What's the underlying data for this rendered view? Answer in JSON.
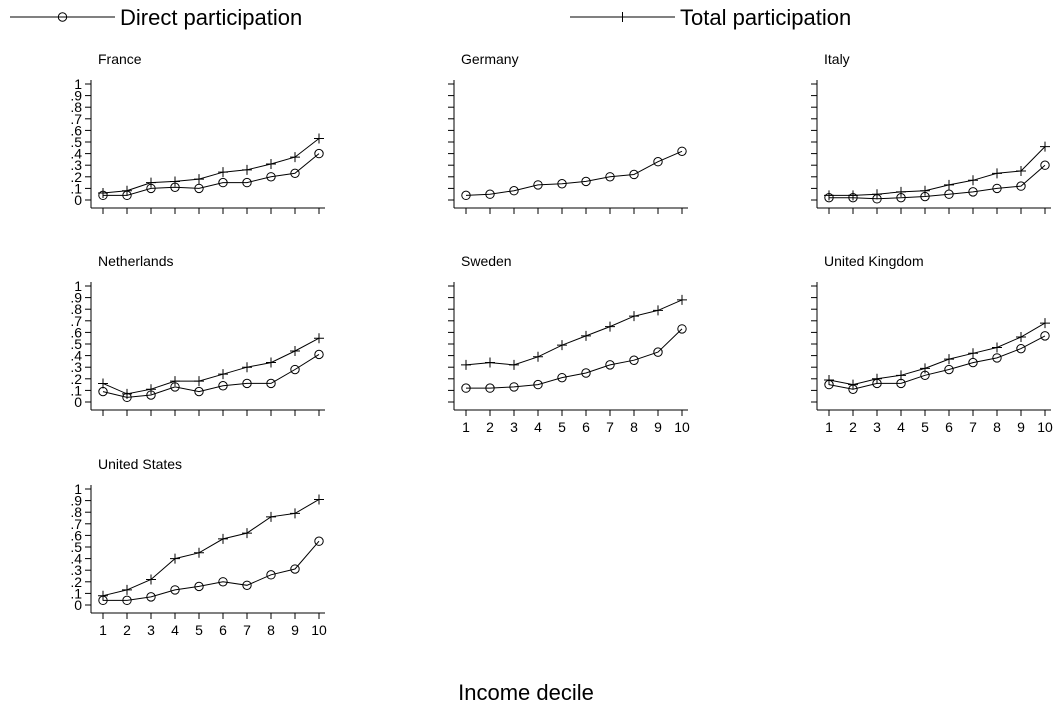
{
  "chart_data": {
    "type": "line",
    "xlabel": "Income decile",
    "ylabel": "",
    "x": [
      1,
      2,
      3,
      4,
      5,
      6,
      7,
      8,
      9,
      10
    ],
    "ylim": [
      0,
      1
    ],
    "yticks": [
      0,
      0.1,
      0.2,
      0.3,
      0.4,
      0.5,
      0.6,
      0.7,
      0.8,
      0.9,
      1
    ],
    "ytick_labels": [
      "0",
      ".1",
      ".2",
      ".3",
      ".4",
      ".5",
      ".6",
      ".7",
      ".8",
      ".9",
      "1"
    ],
    "xtick_labels": [
      "1",
      "2",
      "3",
      "4",
      "5",
      "6",
      "7",
      "8",
      "9",
      "10"
    ],
    "grid": false,
    "legend_position": "top",
    "legend": [
      {
        "key": "direct",
        "label": "Direct participation",
        "marker": "circle"
      },
      {
        "key": "total",
        "label": "Total participation",
        "marker": "plus"
      }
    ],
    "panels": [
      {
        "title": "France",
        "series": [
          {
            "key": "direct",
            "values": [
              0.04,
              0.04,
              0.1,
              0.11,
              0.1,
              0.15,
              0.15,
              0.2,
              0.23,
              0.4
            ]
          },
          {
            "key": "total",
            "values": [
              0.06,
              0.08,
              0.15,
              0.16,
              0.18,
              0.24,
              0.26,
              0.31,
              0.37,
              0.53
            ]
          }
        ]
      },
      {
        "title": "Germany",
        "series": [
          {
            "key": "direct",
            "values": [
              0.04,
              0.05,
              0.08,
              0.13,
              0.14,
              0.16,
              0.2,
              0.22,
              0.33,
              0.42
            ]
          }
        ]
      },
      {
        "title": "Italy",
        "series": [
          {
            "key": "direct",
            "values": [
              0.02,
              0.02,
              0.01,
              0.02,
              0.03,
              0.05,
              0.07,
              0.1,
              0.12,
              0.3
            ]
          },
          {
            "key": "total",
            "values": [
              0.04,
              0.04,
              0.05,
              0.07,
              0.08,
              0.13,
              0.17,
              0.23,
              0.25,
              0.46
            ]
          }
        ]
      },
      {
        "title": "Netherlands",
        "series": [
          {
            "key": "direct",
            "values": [
              0.09,
              0.04,
              0.06,
              0.13,
              0.09,
              0.14,
              0.16,
              0.16,
              0.28,
              0.41
            ]
          },
          {
            "key": "total",
            "values": [
              0.16,
              0.07,
              0.11,
              0.18,
              0.18,
              0.24,
              0.3,
              0.34,
              0.44,
              0.55
            ]
          }
        ]
      },
      {
        "title": "Sweden",
        "series": [
          {
            "key": "direct",
            "values": [
              0.12,
              0.12,
              0.13,
              0.15,
              0.21,
              0.25,
              0.32,
              0.36,
              0.43,
              0.63
            ]
          },
          {
            "key": "total",
            "values": [
              0.32,
              0.34,
              0.32,
              0.39,
              0.49,
              0.57,
              0.65,
              0.74,
              0.79,
              0.88
            ]
          }
        ]
      },
      {
        "title": "United Kingdom",
        "series": [
          {
            "key": "direct",
            "values": [
              0.15,
              0.11,
              0.16,
              0.16,
              0.23,
              0.28,
              0.34,
              0.38,
              0.46,
              0.57
            ]
          },
          {
            "key": "total",
            "values": [
              0.19,
              0.15,
              0.2,
              0.23,
              0.29,
              0.37,
              0.42,
              0.47,
              0.56,
              0.68
            ]
          }
        ]
      },
      {
        "title": "United States",
        "series": [
          {
            "key": "direct",
            "values": [
              0.04,
              0.04,
              0.07,
              0.13,
              0.16,
              0.2,
              0.17,
              0.26,
              0.31,
              0.55
            ]
          },
          {
            "key": "total",
            "values": [
              0.08,
              0.13,
              0.22,
              0.4,
              0.45,
              0.57,
              0.62,
              0.76,
              0.79,
              0.91
            ]
          }
        ]
      }
    ]
  }
}
